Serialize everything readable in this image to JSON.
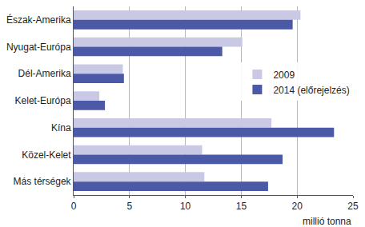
{
  "chart_data": {
    "type": "bar",
    "orientation": "horizontal",
    "x_label": "millió tonna",
    "categories": [
      "Észak-Amerika",
      "Nyugat-Európa",
      "Dél-Amerika",
      "Kelet-Európa",
      "Kína",
      "Közel-Kelet",
      "Más térségek"
    ],
    "series": [
      {
        "name": "2009",
        "color": "#c9c9e6",
        "values": [
          20.3,
          15.1,
          4.4,
          2.3,
          17.7,
          11.5,
          11.7
        ]
      },
      {
        "name": "2014 (előrejelzés)",
        "color": "#4b59a6",
        "values": [
          19.6,
          13.3,
          4.5,
          2.8,
          23.3,
          18.7,
          17.4
        ]
      }
    ],
    "xlim": [
      0,
      25
    ],
    "xticks": [
      0,
      5,
      10,
      15,
      20,
      25
    ],
    "grid": true,
    "legend": "right"
  }
}
